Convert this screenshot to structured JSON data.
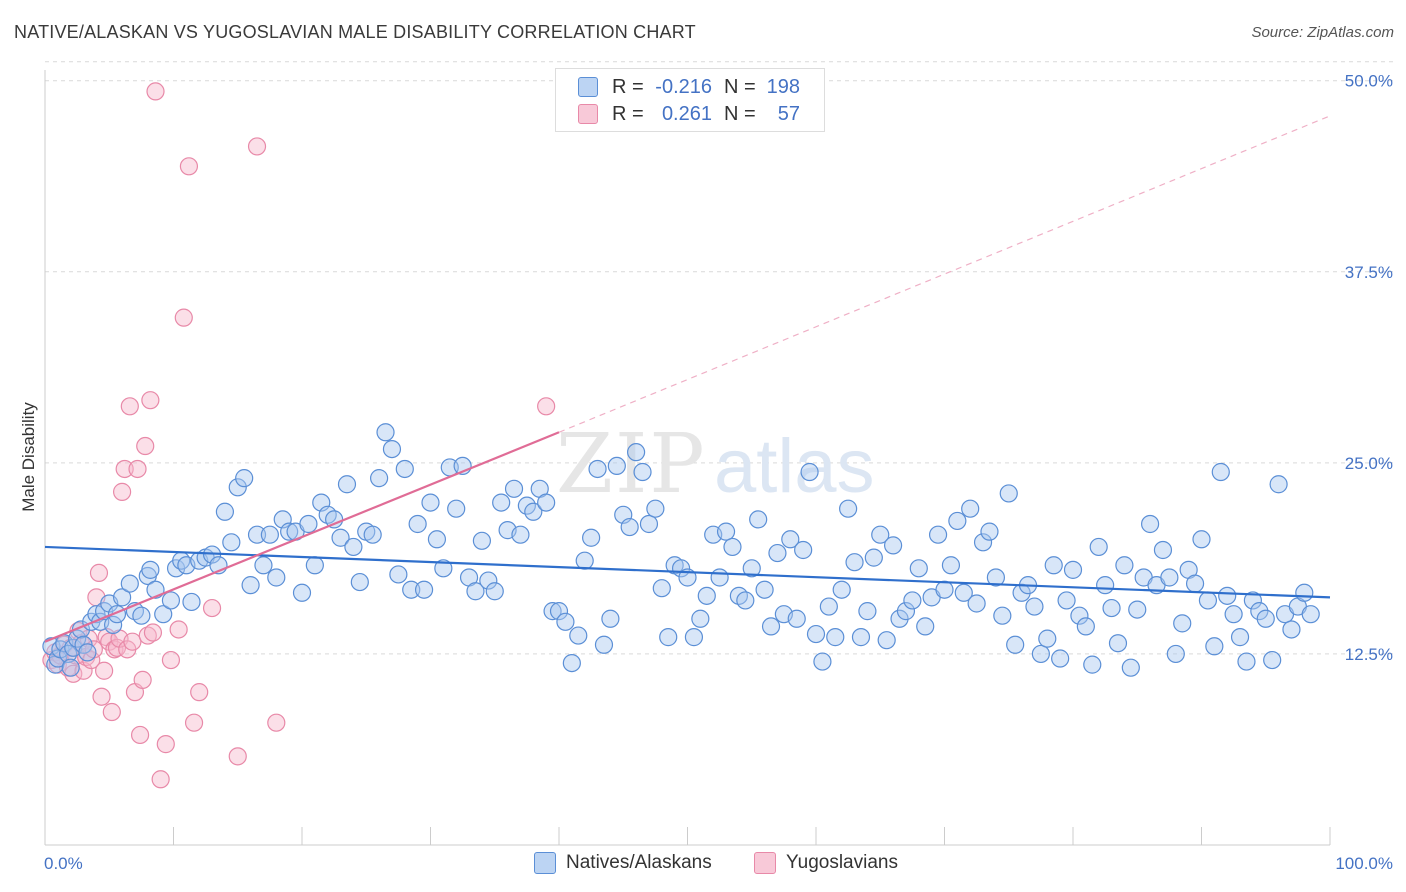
{
  "header": {
    "title": "NATIVE/ALASKAN VS YUGOSLAVIAN MALE DISABILITY CORRELATION CHART",
    "source": "Source: ZipAtlas.com"
  },
  "legend": {
    "rows": [
      {
        "r_label": "R =",
        "r_value": "-0.216",
        "n_label": "N =",
        "n_value": "198"
      },
      {
        "r_label": "R =",
        "r_value": "0.261",
        "n_label": "N =",
        "n_value": "57"
      }
    ]
  },
  "bottom_legend": {
    "items": [
      "Natives/Alaskans",
      "Yugoslavians"
    ]
  },
  "colors": {
    "blue_fill": "#a9c8f0",
    "blue_stroke": "#5b8fd6",
    "blue_line": "#2f6fcc",
    "pink_fill": "#f6b8cc",
    "pink_stroke": "#e889a8",
    "pink_line": "#e06c96",
    "grid": "#d9d9d9",
    "tick": "#4472c4"
  },
  "chart_data": {
    "type": "scatter",
    "title": "NATIVE/ALASKAN VS YUGOSLAVIAN MALE DISABILITY CORRELATION CHART",
    "xlabel": "",
    "ylabel": "Male Disability",
    "xlim": [
      0,
      100
    ],
    "ylim": [
      0,
      50.7
    ],
    "x_tick_labels": [
      "0.0%",
      "100.0%"
    ],
    "y_ticks": [
      12.5,
      25.0,
      37.5,
      50.0
    ],
    "y_tick_labels": [
      "12.5%",
      "25.0%",
      "37.5%",
      "50.0%"
    ],
    "grid": true,
    "watermark": "ZIPatlas",
    "series": [
      {
        "name": "Natives/Alaskans",
        "r": -0.216,
        "n": 198,
        "trend": {
          "x0": 0,
          "y0": 19.5,
          "x1": 100,
          "y1": 16.2
        },
        "points": [
          [
            0.5,
            13.0
          ],
          [
            0.8,
            11.8
          ],
          [
            1.0,
            12.2
          ],
          [
            1.2,
            12.8
          ],
          [
            1.5,
            13.2
          ],
          [
            1.8,
            12.5
          ],
          [
            2.0,
            11.6
          ],
          [
            2.2,
            12.9
          ],
          [
            2.5,
            13.5
          ],
          [
            2.8,
            14.1
          ],
          [
            3.0,
            13.1
          ],
          [
            3.3,
            12.6
          ],
          [
            3.6,
            14.6
          ],
          [
            4.0,
            15.1
          ],
          [
            4.3,
            14.6
          ],
          [
            4.6,
            15.3
          ],
          [
            5.0,
            15.8
          ],
          [
            5.3,
            14.4
          ],
          [
            5.6,
            15.1
          ],
          [
            6.0,
            16.2
          ],
          [
            6.6,
            17.1
          ],
          [
            7.0,
            15.3
          ],
          [
            7.5,
            15.0
          ],
          [
            8.0,
            17.6
          ],
          [
            8.2,
            18.0
          ],
          [
            8.6,
            16.7
          ],
          [
            9.2,
            15.1
          ],
          [
            9.8,
            16.0
          ],
          [
            10.2,
            18.1
          ],
          [
            10.6,
            18.6
          ],
          [
            11.0,
            18.3
          ],
          [
            11.4,
            15.9
          ],
          [
            12.0,
            18.6
          ],
          [
            12.5,
            18.8
          ],
          [
            13.0,
            19.0
          ],
          [
            13.5,
            18.3
          ],
          [
            14.0,
            21.8
          ],
          [
            14.5,
            19.8
          ],
          [
            15.0,
            23.4
          ],
          [
            15.5,
            24.0
          ],
          [
            16.0,
            17.0
          ],
          [
            16.5,
            20.3
          ],
          [
            17.0,
            18.3
          ],
          [
            17.5,
            20.3
          ],
          [
            18.0,
            17.5
          ],
          [
            18.5,
            21.3
          ],
          [
            19.0,
            20.5
          ],
          [
            19.5,
            20.5
          ],
          [
            20.0,
            16.5
          ],
          [
            20.5,
            21.0
          ],
          [
            21.0,
            18.3
          ],
          [
            21.5,
            22.4
          ],
          [
            22.0,
            21.6
          ],
          [
            22.5,
            21.3
          ],
          [
            23.0,
            20.1
          ],
          [
            23.5,
            23.6
          ],
          [
            24.0,
            19.5
          ],
          [
            24.5,
            17.2
          ],
          [
            25.0,
            20.5
          ],
          [
            25.5,
            20.3
          ],
          [
            26.0,
            24.0
          ],
          [
            26.5,
            27.0
          ],
          [
            27.0,
            25.9
          ],
          [
            27.5,
            17.7
          ],
          [
            28.0,
            24.6
          ],
          [
            28.5,
            16.7
          ],
          [
            29.0,
            21.0
          ],
          [
            29.5,
            16.7
          ],
          [
            30.0,
            22.4
          ],
          [
            30.5,
            20.0
          ],
          [
            31.0,
            18.1
          ],
          [
            31.5,
            24.7
          ],
          [
            32.0,
            22.0
          ],
          [
            32.5,
            24.8
          ],
          [
            33.0,
            17.5
          ],
          [
            33.5,
            16.6
          ],
          [
            34.0,
            19.9
          ],
          [
            34.5,
            17.3
          ],
          [
            35.0,
            16.6
          ],
          [
            35.5,
            22.4
          ],
          [
            36.0,
            20.6
          ],
          [
            36.5,
            23.3
          ],
          [
            37.0,
            20.3
          ],
          [
            37.5,
            22.2
          ],
          [
            38.0,
            21.8
          ],
          [
            38.5,
            23.3
          ],
          [
            39.0,
            22.4
          ],
          [
            39.5,
            15.3
          ],
          [
            40.0,
            15.3
          ],
          [
            40.5,
            14.6
          ],
          [
            41.0,
            11.9
          ],
          [
            41.5,
            13.7
          ],
          [
            42.0,
            18.6
          ],
          [
            42.5,
            20.1
          ],
          [
            43.0,
            24.6
          ],
          [
            43.5,
            13.1
          ],
          [
            44.0,
            14.8
          ],
          [
            44.5,
            24.8
          ],
          [
            45.0,
            21.6
          ],
          [
            45.5,
            20.8
          ],
          [
            46.0,
            25.7
          ],
          [
            46.5,
            24.4
          ],
          [
            47.0,
            21.0
          ],
          [
            47.5,
            22.0
          ],
          [
            48.0,
            16.8
          ],
          [
            48.5,
            13.6
          ],
          [
            49.0,
            18.3
          ],
          [
            49.5,
            18.1
          ],
          [
            50.0,
            17.5
          ],
          [
            50.5,
            13.6
          ],
          [
            51.0,
            14.8
          ],
          [
            51.5,
            16.3
          ],
          [
            52.0,
            20.3
          ],
          [
            52.5,
            17.5
          ],
          [
            53.0,
            20.5
          ],
          [
            53.5,
            19.5
          ],
          [
            54.0,
            16.3
          ],
          [
            54.5,
            16.0
          ],
          [
            55.0,
            18.1
          ],
          [
            55.5,
            21.3
          ],
          [
            56.0,
            16.7
          ],
          [
            56.5,
            14.3
          ],
          [
            57.0,
            19.1
          ],
          [
            57.5,
            15.1
          ],
          [
            58.0,
            20.0
          ],
          [
            58.5,
            14.8
          ],
          [
            59.0,
            19.3
          ],
          [
            59.5,
            24.4
          ],
          [
            60.0,
            13.8
          ],
          [
            60.5,
            12.0
          ],
          [
            61.0,
            15.6
          ],
          [
            61.5,
            13.6
          ],
          [
            62.0,
            16.7
          ],
          [
            62.5,
            22.0
          ],
          [
            63.0,
            18.5
          ],
          [
            63.5,
            13.6
          ],
          [
            64.0,
            15.3
          ],
          [
            64.5,
            18.8
          ],
          [
            65.0,
            20.3
          ],
          [
            65.5,
            13.4
          ],
          [
            66.0,
            19.6
          ],
          [
            66.5,
            14.8
          ],
          [
            67.0,
            15.3
          ],
          [
            67.5,
            16.0
          ],
          [
            68.0,
            18.1
          ],
          [
            68.5,
            14.3
          ],
          [
            69.0,
            16.2
          ],
          [
            69.5,
            20.3
          ],
          [
            70.0,
            16.7
          ],
          [
            70.5,
            18.3
          ],
          [
            71.0,
            21.2
          ],
          [
            71.5,
            16.5
          ],
          [
            72.0,
            22.0
          ],
          [
            72.5,
            15.8
          ],
          [
            73.0,
            19.8
          ],
          [
            73.5,
            20.5
          ],
          [
            74.0,
            17.5
          ],
          [
            74.5,
            15.0
          ],
          [
            75.0,
            23.0
          ],
          [
            75.5,
            13.1
          ],
          [
            76.0,
            16.5
          ],
          [
            76.5,
            17.0
          ],
          [
            77.0,
            15.6
          ],
          [
            77.5,
            12.5
          ],
          [
            78.0,
            13.5
          ],
          [
            78.5,
            18.3
          ],
          [
            79.0,
            12.2
          ],
          [
            79.5,
            16.0
          ],
          [
            80.0,
            18.0
          ],
          [
            80.5,
            15.0
          ],
          [
            81.0,
            14.3
          ],
          [
            81.5,
            11.8
          ],
          [
            82.0,
            19.5
          ],
          [
            82.5,
            17.0
          ],
          [
            83.0,
            15.5
          ],
          [
            83.5,
            13.2
          ],
          [
            84.0,
            18.3
          ],
          [
            84.5,
            11.6
          ],
          [
            85.0,
            15.4
          ],
          [
            85.5,
            17.5
          ],
          [
            86.0,
            21.0
          ],
          [
            86.5,
            17.0
          ],
          [
            87.0,
            19.3
          ],
          [
            87.5,
            17.5
          ],
          [
            88.0,
            12.5
          ],
          [
            88.5,
            14.5
          ],
          [
            89.0,
            18.0
          ],
          [
            89.5,
            17.1
          ],
          [
            90.0,
            20.0
          ],
          [
            90.5,
            16.0
          ],
          [
            91.0,
            13.0
          ],
          [
            91.5,
            24.4
          ],
          [
            92.0,
            16.3
          ],
          [
            92.5,
            15.1
          ],
          [
            93.0,
            13.6
          ],
          [
            93.5,
            12.0
          ],
          [
            94.0,
            16.0
          ],
          [
            94.5,
            15.3
          ],
          [
            95.0,
            14.8
          ],
          [
            95.5,
            12.1
          ],
          [
            96.0,
            23.6
          ],
          [
            96.5,
            15.1
          ],
          [
            97.0,
            14.1
          ],
          [
            97.5,
            15.6
          ],
          [
            98.0,
            16.5
          ],
          [
            98.5,
            15.1
          ]
        ]
      },
      {
        "name": "Yugoslavians",
        "r": 0.261,
        "n": 57,
        "trend": {
          "x0": 0,
          "y0": 13.3,
          "x1": 40,
          "y1": 27.0,
          "extend_to_x": 100,
          "extend_to_y": 47.7
        },
        "points": [
          [
            0.5,
            12.1
          ],
          [
            0.8,
            12.6
          ],
          [
            1.0,
            11.8
          ],
          [
            1.2,
            12.4
          ],
          [
            1.5,
            13.1
          ],
          [
            1.8,
            11.6
          ],
          [
            2.0,
            12.9
          ],
          [
            2.2,
            11.2
          ],
          [
            2.4,
            12.4
          ],
          [
            2.6,
            14.0
          ],
          [
            2.8,
            13.2
          ],
          [
            3.0,
            11.4
          ],
          [
            3.2,
            12.3
          ],
          [
            3.4,
            13.5
          ],
          [
            3.6,
            12.1
          ],
          [
            3.8,
            12.8
          ],
          [
            4.0,
            16.2
          ],
          [
            4.2,
            17.8
          ],
          [
            4.4,
            9.7
          ],
          [
            4.6,
            11.4
          ],
          [
            4.8,
            13.6
          ],
          [
            5.0,
            13.3
          ],
          [
            5.2,
            8.7
          ],
          [
            5.4,
            12.8
          ],
          [
            5.6,
            12.9
          ],
          [
            5.8,
            13.5
          ],
          [
            6.0,
            23.1
          ],
          [
            6.2,
            24.6
          ],
          [
            6.4,
            12.8
          ],
          [
            6.6,
            28.7
          ],
          [
            6.8,
            13.3
          ],
          [
            7.0,
            10.0
          ],
          [
            7.2,
            24.6
          ],
          [
            7.4,
            7.2
          ],
          [
            7.6,
            10.8
          ],
          [
            7.8,
            26.1
          ],
          [
            8.0,
            13.7
          ],
          [
            8.2,
            29.1
          ],
          [
            8.4,
            13.9
          ],
          [
            8.6,
            49.3
          ],
          [
            9.0,
            4.3
          ],
          [
            9.4,
            6.6
          ],
          [
            9.8,
            12.1
          ],
          [
            10.4,
            14.1
          ],
          [
            10.8,
            34.5
          ],
          [
            11.2,
            44.4
          ],
          [
            11.6,
            8.0
          ],
          [
            12.0,
            10.0
          ],
          [
            13.0,
            15.5
          ],
          [
            15.0,
            5.8
          ],
          [
            16.5,
            45.7
          ],
          [
            18.0,
            8.0
          ],
          [
            39.0,
            28.7
          ]
        ]
      }
    ]
  }
}
